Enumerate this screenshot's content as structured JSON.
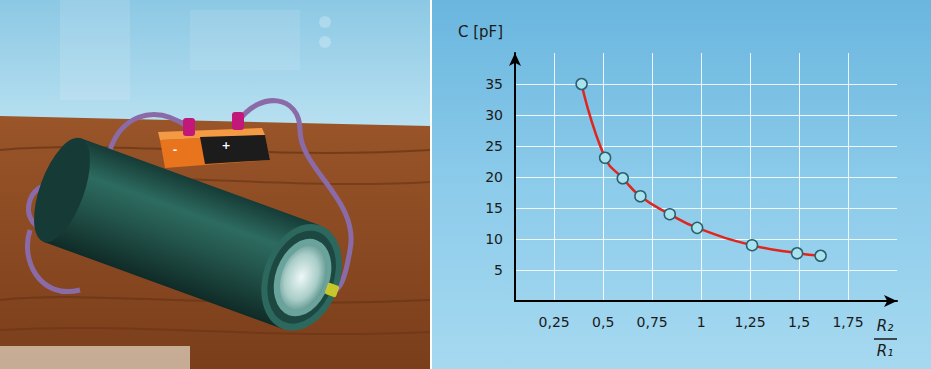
{
  "chart_data": {
    "type": "line",
    "ylabel": "C [pF]",
    "xlabel": {
      "numerator": "R₂",
      "denominator": "R₁"
    },
    "x": [
      0.39,
      0.51,
      0.6,
      0.69,
      0.84,
      0.98,
      1.26,
      1.49,
      1.61
    ],
    "values": [
      35,
      23.1,
      19.8,
      16.9,
      14,
      11.8,
      9,
      7.7,
      7.3
    ],
    "color": "#e3241b",
    "marker": "circle",
    "line_style": "solid",
    "xlim": [
      0.05,
      2
    ],
    "xticks": [
      {
        "value": 0.25,
        "label": "0,25"
      },
      {
        "value": 0.5,
        "label": "0,5"
      },
      {
        "value": 0.75,
        "label": "0,75"
      },
      1,
      {
        "value": 1.25,
        "label": "1,25"
      },
      {
        "value": 1.5,
        "label": "1,5"
      },
      {
        "value": 1.75,
        "label": "1,75"
      }
    ],
    "ylim": [
      0,
      40
    ],
    "yticks": [
      5,
      10,
      15,
      20,
      25,
      30,
      35
    ],
    "grid": true
  },
  "illustration": {
    "battery_labels": [
      "-",
      "+"
    ]
  }
}
